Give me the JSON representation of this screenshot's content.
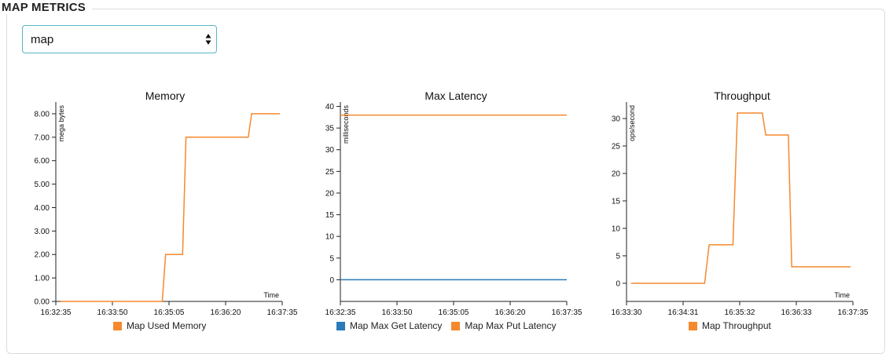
{
  "panel": {
    "title": "MAP METRICS"
  },
  "map_select": {
    "value": "map"
  },
  "icons": {
    "select_caret": "up-down-caret-icon"
  },
  "colors": {
    "orange": "#f5892e",
    "blue": "#2b7bb9"
  },
  "chart_data": [
    {
      "id": "memory",
      "type": "line",
      "title": "Memory",
      "ylabel": "mega bytes",
      "xlabel": "Time",
      "ylim": [
        0,
        8.5
      ],
      "y_ticks": [
        0,
        1,
        2,
        3,
        4,
        5,
        6,
        7,
        8
      ],
      "y_tick_labels": [
        "0.00",
        "1.00",
        "2.00",
        "3.00",
        "4.00",
        "5.00",
        "6.00",
        "7.00",
        "8.00"
      ],
      "x_tick_labels": [
        "16:32:35",
        "16:33:50",
        "16:35:05",
        "16:36:20",
        "16:37:35"
      ],
      "series": [
        {
          "name": "Map Used Memory",
          "color": "#f5892e",
          "x": [
            0.02,
            0.47,
            0.485,
            0.56,
            0.575,
            0.85,
            0.865,
            0.99
          ],
          "values": [
            0,
            0,
            2,
            2,
            7,
            7,
            8,
            8
          ]
        }
      ]
    },
    {
      "id": "latency",
      "type": "line",
      "title": "Max Latency",
      "ylabel": "milliseconds",
      "xlabel": "",
      "ylim": [
        -5,
        41
      ],
      "y_ticks": [
        0,
        5,
        10,
        15,
        20,
        25,
        30,
        35,
        40
      ],
      "y_tick_labels": [
        "0",
        "5",
        "10",
        "15",
        "20",
        "25",
        "30",
        "35",
        "40"
      ],
      "x_tick_labels": [
        "16:32:35",
        "16:33:50",
        "16:35:05",
        "16:36:20",
        "16:37:35"
      ],
      "series": [
        {
          "name": "Map Max Get Latency",
          "color": "#2b7bb9",
          "x": [
            0,
            1
          ],
          "values": [
            0,
            0
          ]
        },
        {
          "name": "Map Max Put Latency",
          "color": "#f5892e",
          "x": [
            0,
            1
          ],
          "values": [
            38,
            38
          ]
        }
      ]
    },
    {
      "id": "throughput",
      "type": "line",
      "title": "Throughput",
      "ylabel": "ops/second",
      "xlabel": "Time",
      "ylim": [
        -3.3,
        33
      ],
      "y_ticks": [
        0,
        5,
        10,
        15,
        20,
        25,
        30
      ],
      "y_tick_labels": [
        "0",
        "5",
        "10",
        "15",
        "20",
        "25",
        "30"
      ],
      "x_tick_labels": [
        "16:33:30",
        "16:34:31",
        "16:35:32",
        "16:36:33",
        "16:37:35"
      ],
      "series": [
        {
          "name": "Map Throughput",
          "color": "#f5892e",
          "x": [
            0.02,
            0.345,
            0.365,
            0.47,
            0.49,
            0.6,
            0.615,
            0.715,
            0.73,
            0.99
          ],
          "values": [
            0,
            0,
            7,
            7,
            31,
            31,
            27,
            27,
            3,
            3
          ]
        }
      ]
    }
  ]
}
